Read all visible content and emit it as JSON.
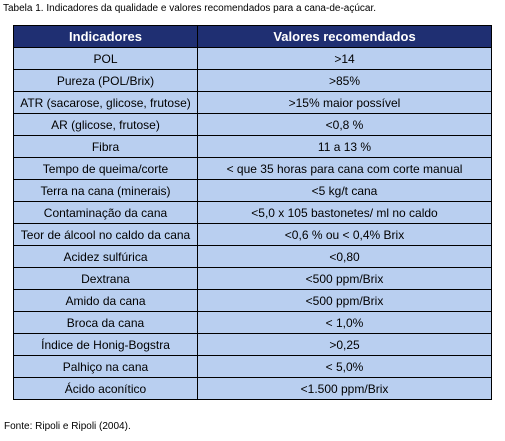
{
  "caption": "Tabela 1. Indicadores da qualidade e valores recomendados para a cana-de-açúcar.",
  "table": {
    "headers": [
      "Indicadores",
      "Valores recomendados"
    ],
    "rows": [
      [
        "POL",
        ">14"
      ],
      [
        "Pureza (POL/Brix)",
        ">85%"
      ],
      [
        "ATR (sacarose, glicose, frutose)",
        ">15% maior possível"
      ],
      [
        "AR (glicose, frutose)",
        "<0,8 %"
      ],
      [
        "Fibra",
        "11 a 13 %"
      ],
      [
        "Tempo de queima/corte",
        "< que 35 horas para cana com corte manual"
      ],
      [
        "Terra na cana (minerais)",
        "<5 kg/t cana"
      ],
      [
        "Contaminação da cana",
        "<5,0 x 105 bastonetes/ ml no caldo"
      ],
      [
        "Teor de álcool no caldo da cana",
        "<0,6 % ou < 0,4% Brix"
      ],
      [
        "Acidez sulfúrica",
        "<0,80"
      ],
      [
        "Dextrana",
        "<500 ppm/Brix"
      ],
      [
        "Amido da cana",
        "<500 ppm/Brix"
      ],
      [
        "Broca da  cana",
        "< 1,0%"
      ],
      [
        "Índice de Honig-Bogstra",
        ">0,25"
      ],
      [
        "Palhiço na cana",
        "< 5,0%"
      ],
      [
        "Ácido aconítico",
        "<1.500 ppm/Brix"
      ]
    ]
  },
  "source": "Fonte: Ripoli e Ripoli (2004).",
  "colors": {
    "header_bg": "#1f2f72",
    "cell_bg": "#b9cff0"
  }
}
